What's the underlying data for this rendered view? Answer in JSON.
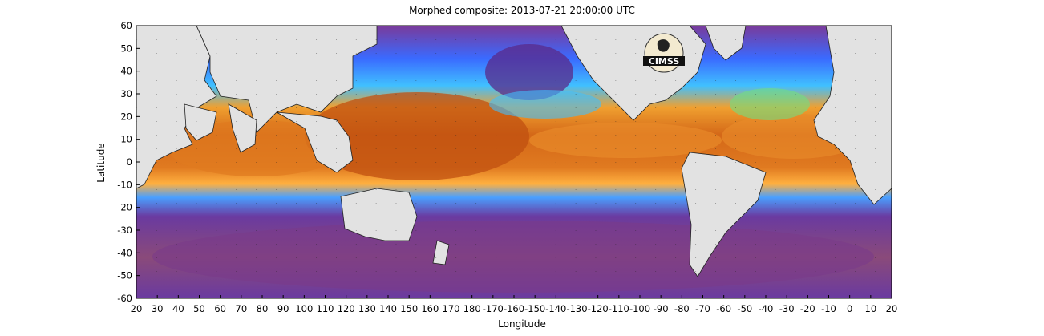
{
  "title": "Morphed composite: 2013-07-21 20:00:00 UTC",
  "xlabel": "Longitude",
  "ylabel": "Latitude",
  "x_ticks": [
    "20",
    "30",
    "40",
    "50",
    "60",
    "70",
    "80",
    "90",
    "100",
    "110",
    "120",
    "130",
    "140",
    "150",
    "160",
    "170",
    "180",
    "-170",
    "-160",
    "-150",
    "-140",
    "-130",
    "-120",
    "-110",
    "-100",
    "-90",
    "-80",
    "-70",
    "-60",
    "-50",
    "-40",
    "-30",
    "-20",
    "-10",
    "0",
    "10",
    "20"
  ],
  "y_ticks": [
    "60",
    "50",
    "40",
    "30",
    "20",
    "10",
    "0",
    "-10",
    "-20",
    "-30",
    "-40",
    "-50",
    "-60"
  ],
  "logo_text": "CIMSS",
  "colors": {
    "land": "#e2e2e2",
    "high": "#c05a10",
    "mid_high": "#f09020",
    "mid": "#ffdc40",
    "mid_low": "#60e080",
    "low": "#2050ff",
    "very_low": "#5a2a8a",
    "background_low": "#7a4a80"
  }
}
